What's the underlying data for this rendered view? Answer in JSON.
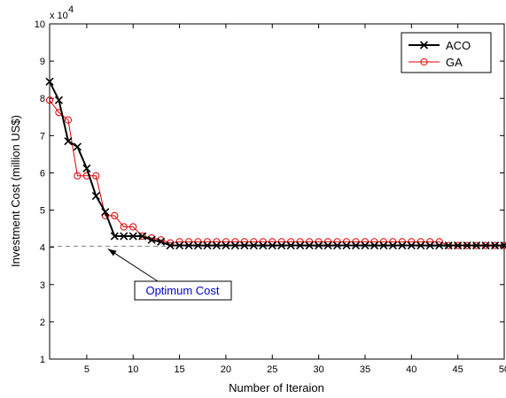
{
  "chart_data": {
    "type": "line",
    "xlabel": "Number of Iteraion",
    "ylabel": "Investment Cost (million US$)",
    "y_multiplier_label": "x 10",
    "y_multiplier_exponent": "4",
    "xlim": [
      1,
      50
    ],
    "ylim": [
      1,
      10
    ],
    "x_ticks": [
      5,
      10,
      15,
      20,
      25,
      30,
      35,
      40,
      45,
      50
    ],
    "y_ticks": [
      1,
      2,
      3,
      4,
      5,
      6,
      7,
      8,
      9,
      10
    ],
    "grid": false,
    "legend_position": "top-right",
    "series": [
      {
        "name": "ACO",
        "color": "#000000",
        "marker": "x",
        "x": [
          1,
          2,
          3,
          4,
          5,
          6,
          7,
          8,
          9,
          10,
          11,
          12,
          13,
          14,
          15,
          16,
          17,
          18,
          19,
          20,
          21,
          22,
          23,
          24,
          25,
          26,
          27,
          28,
          29,
          30,
          31,
          32,
          33,
          34,
          35,
          36,
          37,
          38,
          39,
          40,
          41,
          42,
          43,
          44,
          45,
          46,
          47,
          48,
          49,
          50
        ],
        "values": [
          8.45,
          7.95,
          6.85,
          6.7,
          6.12,
          5.38,
          4.95,
          4.3,
          4.3,
          4.3,
          4.3,
          4.2,
          4.15,
          4.05,
          4.05,
          4.05,
          4.05,
          4.05,
          4.05,
          4.05,
          4.05,
          4.05,
          4.05,
          4.05,
          4.05,
          4.05,
          4.05,
          4.05,
          4.05,
          4.05,
          4.05,
          4.05,
          4.05,
          4.05,
          4.05,
          4.05,
          4.05,
          4.05,
          4.05,
          4.05,
          4.05,
          4.05,
          4.05,
          4.05,
          4.05,
          4.05,
          4.05,
          4.05,
          4.05,
          4.05
        ]
      },
      {
        "name": "GA",
        "color": "#e00000",
        "marker": "o",
        "x": [
          1,
          2,
          3,
          4,
          5,
          6,
          7,
          8,
          9,
          10,
          11,
          12,
          13,
          14,
          15,
          16,
          17,
          18,
          19,
          20,
          21,
          22,
          23,
          24,
          25,
          26,
          27,
          28,
          29,
          30,
          31,
          32,
          33,
          34,
          35,
          36,
          37,
          38,
          39,
          40,
          41,
          42,
          43,
          44,
          45,
          46,
          47,
          48,
          49,
          50
        ],
        "values": [
          7.95,
          7.62,
          7.42,
          5.92,
          5.92,
          5.92,
          4.85,
          4.85,
          4.55,
          4.55,
          4.3,
          4.25,
          4.2,
          4.12,
          4.15,
          4.15,
          4.15,
          4.15,
          4.15,
          4.15,
          4.15,
          4.15,
          4.15,
          4.15,
          4.15,
          4.15,
          4.15,
          4.15,
          4.15,
          4.15,
          4.15,
          4.15,
          4.15,
          4.15,
          4.15,
          4.15,
          4.15,
          4.15,
          4.15,
          4.15,
          4.15,
          4.15,
          4.15,
          4.05,
          4.05,
          4.05,
          4.05,
          4.05,
          4.05,
          4.05
        ]
      }
    ],
    "reference_line": {
      "y": 4.03,
      "style": "dashed",
      "color": "#808080"
    },
    "annotation": {
      "text": "Optimum Cost",
      "text_color": "#0000cc",
      "arrow_target_x": 7,
      "arrow_target_y": 4.03
    }
  }
}
